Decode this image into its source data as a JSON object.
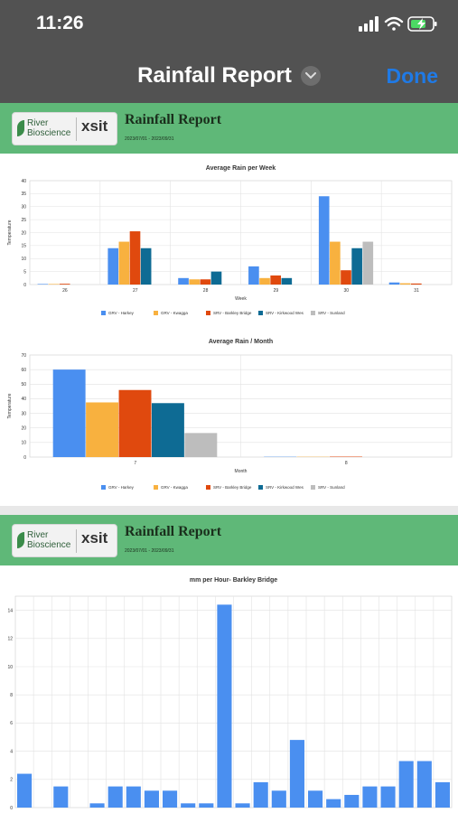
{
  "status": {
    "time": "11:26"
  },
  "nav": {
    "title": "Rainfall Report",
    "done_label": "Done"
  },
  "report": {
    "logo_left_line1": "River",
    "logo_left_line2": "Bioscience",
    "logo_right": "xsit",
    "title": "Rainfall Report",
    "date_range": "2023/07/01 - 2023/09/31"
  },
  "colors": {
    "status_bg": "#525252",
    "done": "#1f7ae6",
    "banner": "#5fb878",
    "series": [
      "#4a8ff0",
      "#f8b13f",
      "#e0490e",
      "#0e6b94",
      "#bdbdbd"
    ]
  },
  "chart_data": [
    {
      "type": "bar",
      "title": "Average Rain per Week",
      "xlabel": "Week",
      "ylabel": "Temperature",
      "categories": [
        "26",
        "27",
        "28",
        "29",
        "30",
        "31"
      ],
      "ylim": [
        0,
        40
      ],
      "yticks": [
        0,
        5,
        10,
        15,
        20,
        25,
        30,
        35,
        40
      ],
      "grid": true,
      "legend": "bottom",
      "series": [
        {
          "name": "GRV - Harkey",
          "values": [
            0.2,
            14,
            2.5,
            7,
            34,
            0.8
          ]
        },
        {
          "name": "GRV - Kwagga",
          "values": [
            0.2,
            16.5,
            2,
            2.5,
            16.5,
            0.5
          ]
        },
        {
          "name": "SRV - Barkley Bridge",
          "values": [
            0.3,
            20.5,
            2,
            3.5,
            5.5,
            0.4
          ]
        },
        {
          "name": "SRV - Kirkwood Wes",
          "values": [
            0,
            14,
            5,
            2.5,
            14,
            0
          ]
        },
        {
          "name": "SRV - Sunland",
          "values": [
            0,
            0,
            0,
            0,
            16.5,
            0
          ]
        }
      ]
    },
    {
      "type": "bar",
      "title": "Average Rain / Month",
      "xlabel": "Month",
      "ylabel": "Temperature",
      "categories": [
        "7",
        "8"
      ],
      "ylim": [
        0,
        70
      ],
      "yticks": [
        0,
        10,
        20,
        30,
        40,
        50,
        60,
        70
      ],
      "grid": true,
      "legend": "bottom",
      "series": [
        {
          "name": "GRV - Harkey",
          "values": [
            60,
            0.2
          ]
        },
        {
          "name": "GRV - Kwagga",
          "values": [
            37.5,
            0.2
          ]
        },
        {
          "name": "SRV - Barkley Bridge",
          "values": [
            46,
            0.3
          ]
        },
        {
          "name": "SRV - Kirkwood Wes",
          "values": [
            37,
            0
          ]
        },
        {
          "name": "SRV - Sunland",
          "values": [
            16.5,
            0
          ]
        }
      ]
    },
    {
      "type": "bar",
      "title": "mm per Hour- Barkley Bridge",
      "xlabel": "",
      "ylabel": "",
      "ylim": [
        0,
        15
      ],
      "yticks": [
        0,
        2,
        4,
        6,
        8,
        10,
        12,
        14
      ],
      "grid": true,
      "series": [
        {
          "name": "",
          "values": [
            2.4,
            0,
            1.5,
            0,
            0.3,
            1.5,
            1.5,
            1.2,
            1.2,
            0.3,
            0.3,
            14.4,
            0.3,
            1.8,
            1.2,
            4.8,
            1.2,
            0.6,
            0.9,
            1.5,
            1.5,
            3.3,
            3.3,
            1.8
          ]
        }
      ]
    }
  ]
}
